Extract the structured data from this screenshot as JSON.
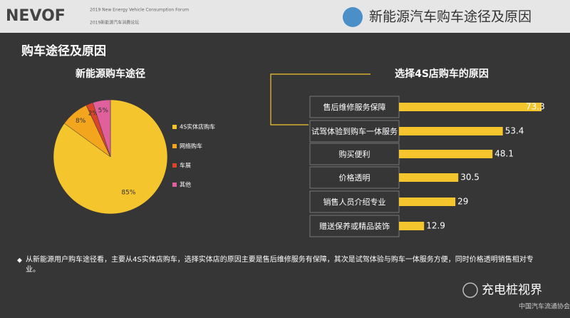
{
  "header": {
    "logo": "NEVOF",
    "forum_en": "2019 New Energy Vehicle Consumption Forum",
    "forum_cn": "2019新能源汽车消费论坛",
    "title": "新能源汽车购车途径及原因"
  },
  "section_title": "购车途径及原因",
  "chart_data": [
    {
      "type": "pie",
      "title": "新能源购车途径",
      "categories": [
        "4S实体店购车",
        "网络购车",
        "车展",
        "其他"
      ],
      "values": [
        85,
        8,
        2,
        5
      ],
      "value_labels": [
        "85%",
        "8%",
        "2%",
        "5%"
      ],
      "colors": [
        "#f5c52e",
        "#f3a51d",
        "#d9452b",
        "#e0609d"
      ],
      "legend": "right"
    },
    {
      "type": "hbar",
      "title": "选择4S店购车的原因",
      "categories": [
        "售后维修服务保障",
        "试驾体验到购车一体服务",
        "购买便利",
        "价格透明",
        "销售人员介绍专业",
        "赠送保养或精品装饰"
      ],
      "values": [
        73.3,
        53.4,
        48.1,
        30.5,
        29,
        12.9
      ],
      "color": "#f5c52e"
    }
  ],
  "footnote": "从新能源用户购车途径看，主要从4S实体店购车，选择实体店的原因主要是售后维修服务有保障，其次是试驾体验与购车一体服务方便，同时价格透明销售相对专业。",
  "watermark": "充电桩视界",
  "org": "中国汽车流通协会"
}
